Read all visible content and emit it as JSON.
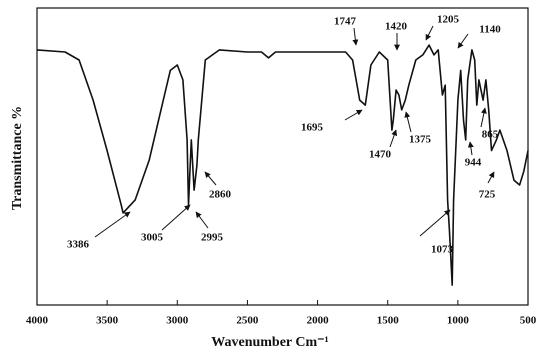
{
  "chart_data": {
    "type": "line",
    "x_label": "Wavenumber Cm⁻¹",
    "y_label": "Transmittance %",
    "xlim": [
      4000,
      500
    ],
    "xticks": [
      4000,
      3500,
      3000,
      2500,
      2000,
      1500,
      1000,
      500
    ],
    "ylim": [
      0,
      100
    ],
    "series": [
      {
        "color": "#111111",
        "x": [
          4000,
          3800,
          3700,
          3600,
          3500,
          3400,
          3386,
          3300,
          3200,
          3100,
          3050,
          3000,
          2960,
          2930,
          2920,
          2900,
          2880,
          2860,
          2850,
          2800,
          2700,
          2500,
          2400,
          2350,
          2300,
          2000,
          1800,
          1750,
          1700,
          1660,
          1620,
          1560,
          1500,
          1470,
          1460,
          1440,
          1420,
          1400,
          1375,
          1350,
          1300,
          1250,
          1205,
          1170,
          1140,
          1110,
          1090,
          1073,
          1060,
          1040,
          1030,
          1000,
          980,
          960,
          944,
          930,
          900,
          880,
          865,
          850,
          820,
          800,
          780,
          760,
          725,
          700,
          650,
          600,
          560,
          530,
          500
        ],
        "values": [
          85.9,
          85.2,
          82.5,
          69,
          52,
          33.7,
          31,
          35.4,
          48.8,
          69,
          79,
          80.8,
          75.8,
          55.6,
          33.7,
          55.6,
          38.7,
          47,
          55.6,
          82.5,
          85.9,
          85.2,
          85.2,
          83.2,
          85.2,
          85.2,
          85.2,
          82.5,
          69,
          67.3,
          80.8,
          85.2,
          82.5,
          58.9,
          62.3,
          72.4,
          70.7,
          65.7,
          69,
          74,
          82.5,
          84.2,
          87.5,
          84.2,
          85.9,
          70.7,
          74,
          35.4,
          25.3,
          6.7,
          35.4,
          69,
          79,
          62.3,
          55.6,
          75.8,
          85.9,
          82.5,
          67.3,
          75.8,
          69,
          75.8,
          65.7,
          52,
          55.6,
          58.9,
          52,
          42,
          40.4,
          45,
          52
        ]
      }
    ],
    "annotations": [
      "3386",
      "3005",
      "2995",
      "2860",
      "1747",
      "1695",
      "1420",
      "1470",
      "1375",
      "1205",
      "1140",
      "1073",
      "944",
      "865",
      "725"
    ]
  }
}
